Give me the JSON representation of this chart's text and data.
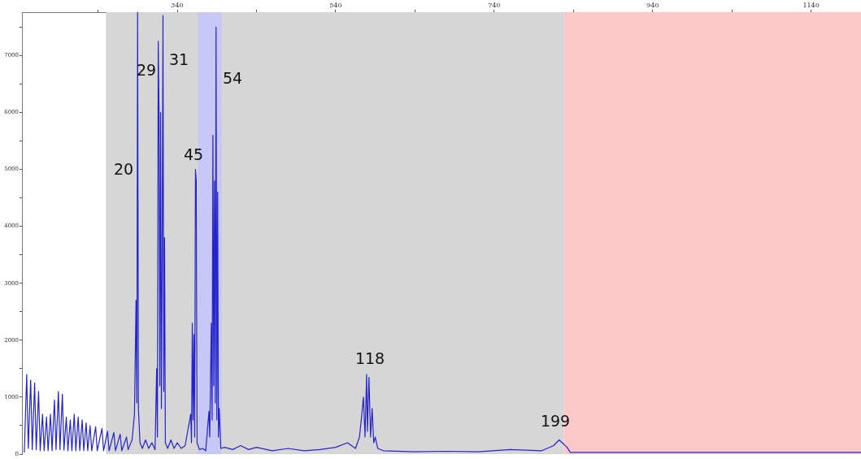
{
  "chart_data": {
    "type": "line",
    "x": [
      147,
      150,
      152,
      155,
      157,
      160,
      162,
      165,
      167,
      170,
      172,
      175,
      177,
      180,
      182,
      185,
      187,
      190,
      192,
      195,
      197,
      200,
      202,
      205,
      207,
      210,
      212,
      215,
      217,
      220,
      222,
      225,
      227,
      230,
      232,
      237,
      239,
      245,
      247,
      252,
      254,
      260,
      262,
      268,
      270,
      276,
      278,
      283,
      286,
      288,
      289,
      290,
      291,
      293,
      296,
      300,
      304,
      308,
      312,
      314,
      315,
      316,
      317,
      318,
      319,
      320,
      321,
      322,
      323,
      324,
      325,
      328,
      332,
      336,
      340,
      345,
      350,
      357,
      358,
      359,
      360,
      361,
      362,
      363,
      364,
      365,
      368,
      372,
      376,
      380,
      381,
      383,
      384,
      385,
      386,
      387,
      388,
      389,
      390,
      391,
      392,
      393,
      395,
      400,
      410,
      420,
      430,
      440,
      460,
      480,
      500,
      520,
      540,
      555,
      565,
      570,
      573,
      575,
      577,
      579,
      580,
      582,
      584,
      586,
      588,
      590,
      593,
      600,
      640,
      680,
      720,
      760,
      800,
      815,
      822,
      826,
      832,
      836,
      900,
      1000,
      1100,
      1203
    ],
    "series": [
      {
        "color": "#2424c8",
        "values": [
          30,
          1400,
          100,
          1300,
          80,
          1250,
          80,
          1100,
          60,
          700,
          60,
          650,
          60,
          700,
          60,
          950,
          80,
          1100,
          80,
          1050,
          70,
          650,
          60,
          600,
          60,
          700,
          60,
          650,
          60,
          600,
          60,
          550,
          60,
          500,
          60,
          480,
          60,
          450,
          60,
          400,
          60,
          380,
          60,
          350,
          60,
          300,
          80,
          250,
          700,
          2700,
          900,
          7760,
          800,
          200,
          100,
          250,
          100,
          200,
          80,
          1500,
          300,
          7250,
          6000,
          1200,
          6000,
          800,
          3500,
          7700,
          1100,
          3800,
          200,
          100,
          250,
          100,
          200,
          100,
          150,
          700,
          200,
          2300,
          600,
          2100,
          300,
          5000,
          4800,
          200,
          80,
          100,
          60,
          750,
          300,
          2300,
          600,
          5600,
          1200,
          4800,
          900,
          7500,
          600,
          4600,
          300,
          800,
          100,
          120,
          80,
          150,
          80,
          120,
          60,
          100,
          60,
          80,
          120,
          200,
          100,
          300,
          700,
          1000,
          300,
          1400,
          400,
          1350,
          300,
          800,
          200,
          300,
          100,
          60,
          40,
          50,
          40,
          80,
          60,
          150,
          250,
          200,
          120,
          30,
          30,
          30,
          30,
          30
        ]
      }
    ],
    "xlim": [
      144,
      1203
    ],
    "xticks": [
      {
        "value": 240,
        "label": null
      },
      340,
      {
        "value": 440,
        "label": null
      },
      540,
      {
        "value": 640,
        "label": null
      },
      740,
      {
        "value": 840,
        "label": null
      },
      940,
      {
        "value": 1040,
        "label": null
      },
      1140
    ],
    "ylim": [
      0,
      7760
    ],
    "yticks": [
      0,
      {
        "value": 500,
        "label": null
      },
      1000,
      {
        "value": 1500,
        "label": null
      },
      2000,
      {
        "value": 2500,
        "label": null
      },
      3000,
      {
        "value": 3500,
        "label": null
      },
      4000,
      {
        "value": 4500,
        "label": null
      },
      5000,
      {
        "value": 5500,
        "label": null
      },
      6000,
      {
        "value": 6500,
        "label": null
      },
      7000,
      {
        "value": 7500,
        "label": null
      }
    ],
    "bands": [
      {
        "axis": "x",
        "from": 250,
        "to": 828,
        "color": "#d6d6d6"
      },
      {
        "axis": "x",
        "from": 366,
        "to": 396,
        "color": "#c8c8f8"
      },
      {
        "axis": "x",
        "from": 828,
        "to": 1203,
        "color": "#fcc8c8"
      }
    ],
    "annotations": [
      "20",
      "29",
      "31",
      "45",
      "54",
      "118",
      "199"
    ],
    "grid": false,
    "legend": false,
    "marker": "none",
    "line_style": "solid"
  }
}
